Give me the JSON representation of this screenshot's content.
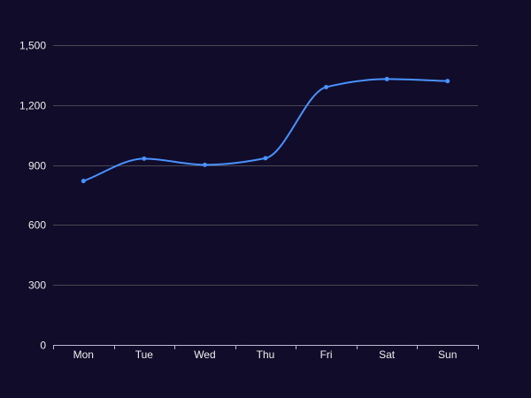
{
  "colors": {
    "background": "#100c2a",
    "axis": "#b9b8ce",
    "grid": "#484753",
    "label": "#eeeeee",
    "series": "#4992ff"
  },
  "chart_data": {
    "type": "line",
    "smooth": true,
    "title": "",
    "xlabel": "",
    "ylabel": "",
    "categories": [
      "Mon",
      "Tue",
      "Wed",
      "Thu",
      "Fri",
      "Sat",
      "Sun"
    ],
    "series": [
      {
        "values": [
          820,
          932,
          901,
          934,
          1290,
          1330,
          1320
        ]
      }
    ],
    "ylim": [
      0,
      1500
    ],
    "yticks": [
      0,
      300,
      600,
      900,
      1200,
      1500
    ],
    "ytick_labels": [
      "0",
      "300",
      "600",
      "900",
      "1,200",
      "1,500"
    ],
    "grid": "horizontal",
    "legend": "none"
  }
}
